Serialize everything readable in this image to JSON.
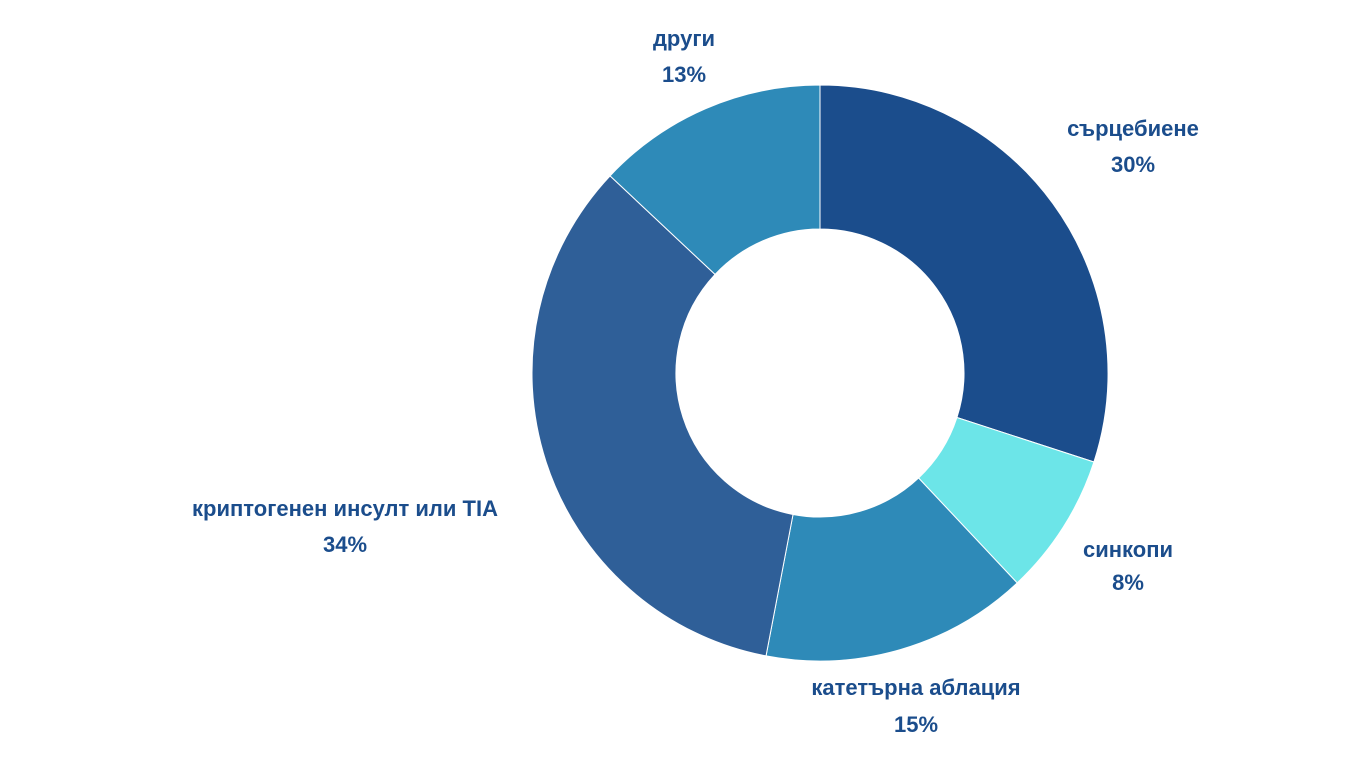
{
  "chart_data": {
    "type": "donut",
    "categories": [
      "сърцебиене",
      "синкопи",
      "катетърна аблация",
      "криптогенен инсулт или TIA",
      "други"
    ],
    "values": [
      30,
      8,
      15,
      34,
      13
    ],
    "value_labels": [
      "30%",
      "8%",
      "15%",
      "34%",
      "13%"
    ],
    "colors": [
      "#1b4d8c",
      "#6ce5e8",
      "#2e8ab8",
      "#2f5f98",
      "#2e8ab8"
    ]
  }
}
